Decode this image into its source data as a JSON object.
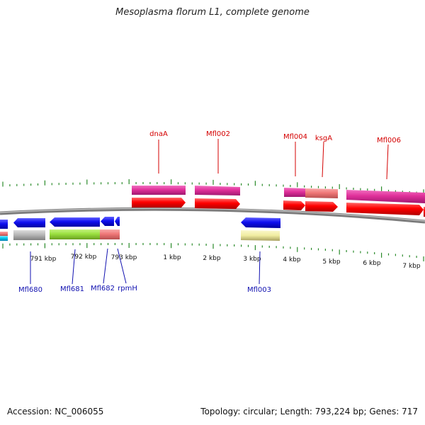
{
  "title": "Mesoplasma florum L1, complete genome",
  "footer": {
    "accession": "Accession: NC_006055",
    "stats": "Topology: circular; Length: 793,224 bp; Genes: 717"
  },
  "ruler_labels": [
    {
      "text": "791 kbp",
      "kbp": 791
    },
    {
      "text": "792 kbp",
      "kbp": 792
    },
    {
      "text": "793 kbp",
      "kbp": 793
    },
    {
      "text": "1 kbp",
      "kbp": 1
    },
    {
      "text": "2 kbp",
      "kbp": 2
    },
    {
      "text": "3 kbp",
      "kbp": 3
    },
    {
      "text": "4 kbp",
      "kbp": 4
    },
    {
      "text": "5 kbp",
      "kbp": 5
    },
    {
      "text": "6 kbp",
      "kbp": 6
    },
    {
      "text": "7 kbp",
      "kbp": 7
    }
  ],
  "gene_labels_forward": [
    {
      "text": "dnaA"
    },
    {
      "text": "Mfl002"
    },
    {
      "text": "Mfl004"
    },
    {
      "text": "ksgA"
    },
    {
      "text": "Mfl006"
    }
  ],
  "gene_labels_reverse": [
    {
      "text": "Mfl680"
    },
    {
      "text": "Mfl681"
    },
    {
      "text": "Mfl682"
    },
    {
      "text": "rpmH"
    },
    {
      "text": "Mfl003"
    }
  ],
  "colors": {
    "forward_label": "#d40000",
    "reverse_label": "#1010b0",
    "tick": "#2a8a2a",
    "backbone": "#888888",
    "red_gene": "#ff0000",
    "magenta_gene": "#e0309a",
    "salmon_gene": "#f07878",
    "blue_gene": "#1010f0",
    "grey_gene": "#b8b8b8",
    "green_gene": "#9ae040",
    "yellow_gene": "#f0eca0",
    "cyan_gene": "#00c8f0"
  }
}
